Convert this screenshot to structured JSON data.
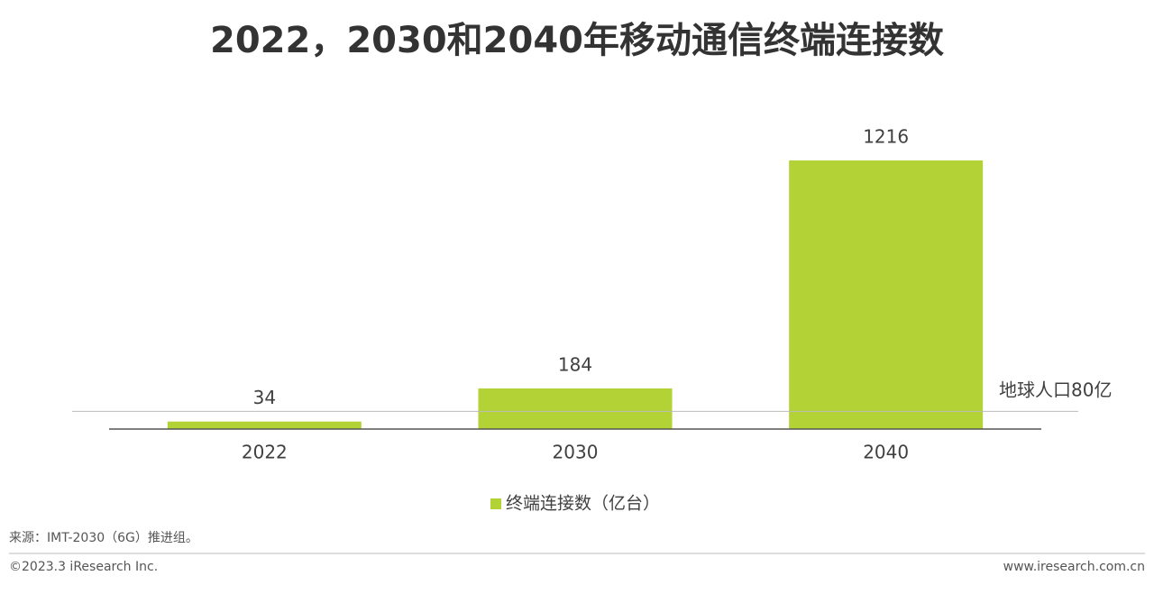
{
  "chart_data": {
    "type": "bar",
    "title": "2022，2030和2040年移动通信终端连接数",
    "categories": [
      "2022",
      "2030",
      "2040"
    ],
    "series": [
      {
        "name": "终端连接数（亿台）",
        "color": "#b2d235",
        "values": [
          34,
          184,
          1216
        ]
      }
    ],
    "reference_line": {
      "value": 80,
      "label": "地球人口80亿"
    },
    "source": "来源：IMT-2030（6G）推进组。",
    "copyright": "©2023.3 iResearch Inc.",
    "website": "www.iresearch.com.cn"
  }
}
